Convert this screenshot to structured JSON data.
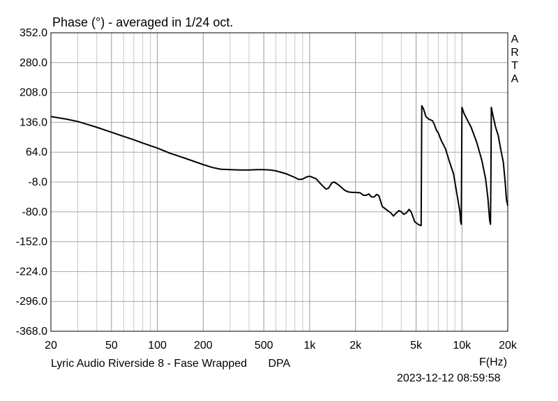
{
  "chart_data": {
    "type": "line",
    "title": "Phase (°) - averaged in 1/24 oct.",
    "xlabel": "F(Hz)",
    "ylabel": "",
    "xscale": "log",
    "xlim": [
      20,
      20000
    ],
    "ylim": [
      -368,
      352
    ],
    "yticks": [
      352,
      280,
      208,
      136,
      64,
      -8,
      -80,
      -152,
      -224,
      -296,
      -368
    ],
    "ytick_labels": [
      "352.0",
      "280.0",
      "208.0",
      "136.0",
      "64.0",
      "-8.0",
      "-80.0",
      "-152.0",
      "-224.0",
      "-296.0",
      "-368.0"
    ],
    "xticks": [
      20,
      50,
      100,
      200,
      500,
      1000,
      2000,
      5000,
      10000,
      20000
    ],
    "xtick_labels": [
      "20",
      "50",
      "100",
      "200",
      "500",
      "1k",
      "2k",
      "5k",
      "10k",
      "20k"
    ],
    "grid": true,
    "legend": "none",
    "line_color": "#000000",
    "series": [
      {
        "points": [
          [
            20,
            150
          ],
          [
            25,
            144
          ],
          [
            30,
            138
          ],
          [
            40,
            124
          ],
          [
            50,
            112
          ],
          [
            60,
            102
          ],
          [
            70,
            94
          ],
          [
            80,
            86
          ],
          [
            100,
            74
          ],
          [
            120,
            62
          ],
          [
            150,
            50
          ],
          [
            200,
            34
          ],
          [
            230,
            27
          ],
          [
            260,
            23
          ],
          [
            300,
            22
          ],
          [
            350,
            21
          ],
          [
            400,
            21
          ],
          [
            450,
            22
          ],
          [
            500,
            22
          ],
          [
            550,
            21
          ],
          [
            600,
            19
          ],
          [
            700,
            12
          ],
          [
            800,
            3
          ],
          [
            850,
            -2
          ],
          [
            900,
            -1
          ],
          [
            950,
            4
          ],
          [
            1000,
            6
          ],
          [
            1100,
            0
          ],
          [
            1200,
            -15
          ],
          [
            1280,
            -25
          ],
          [
            1330,
            -23
          ],
          [
            1400,
            -10
          ],
          [
            1450,
            -8
          ],
          [
            1550,
            -15
          ],
          [
            1700,
            -28
          ],
          [
            1800,
            -32
          ],
          [
            1900,
            -33
          ],
          [
            2000,
            -33
          ],
          [
            2150,
            -34
          ],
          [
            2250,
            -40
          ],
          [
            2350,
            -40
          ],
          [
            2450,
            -37
          ],
          [
            2550,
            -44
          ],
          [
            2650,
            -44
          ],
          [
            2750,
            -38
          ],
          [
            2850,
            -41
          ],
          [
            2900,
            -50
          ],
          [
            3000,
            -67
          ],
          [
            3200,
            -75
          ],
          [
            3400,
            -82
          ],
          [
            3550,
            -90
          ],
          [
            3700,
            -83
          ],
          [
            3850,
            -77
          ],
          [
            4000,
            -80
          ],
          [
            4150,
            -86
          ],
          [
            4300,
            -83
          ],
          [
            4500,
            -74
          ],
          [
            4650,
            -81
          ],
          [
            4900,
            -104
          ],
          [
            5200,
            -111
          ],
          [
            5400,
            -113
          ],
          [
            5450,
            176
          ],
          [
            5600,
            168
          ],
          [
            5800,
            150
          ],
          [
            6100,
            143
          ],
          [
            6400,
            140
          ],
          [
            6600,
            130
          ],
          [
            6800,
            117
          ],
          [
            7000,
            110
          ],
          [
            7300,
            93
          ],
          [
            7800,
            72
          ],
          [
            8300,
            40
          ],
          [
            8800,
            12
          ],
          [
            9300,
            -40
          ],
          [
            9700,
            -80
          ],
          [
            9800,
            -103
          ],
          [
            9900,
            -110
          ],
          [
            10000,
            172
          ],
          [
            10300,
            158
          ],
          [
            10800,
            143
          ],
          [
            11500,
            124
          ],
          [
            12500,
            88
          ],
          [
            13500,
            45
          ],
          [
            14300,
            0
          ],
          [
            14800,
            -45
          ],
          [
            15200,
            -100
          ],
          [
            15400,
            -110
          ],
          [
            15500,
            -3
          ],
          [
            15600,
            172
          ],
          [
            16000,
            152
          ],
          [
            16700,
            122
          ],
          [
            17300,
            105
          ],
          [
            18000,
            70
          ],
          [
            18700,
            40
          ],
          [
            19200,
            -5
          ],
          [
            19600,
            -50
          ],
          [
            20000,
            -65
          ]
        ]
      }
    ]
  },
  "footer": {
    "product": "Lyric Audio Riverside 8 - Fase Wrapped",
    "mic": "DPA"
  },
  "timestamp": "2023-12-12   08:59:58",
  "watermark": [
    "A",
    "R",
    "T",
    "A"
  ]
}
